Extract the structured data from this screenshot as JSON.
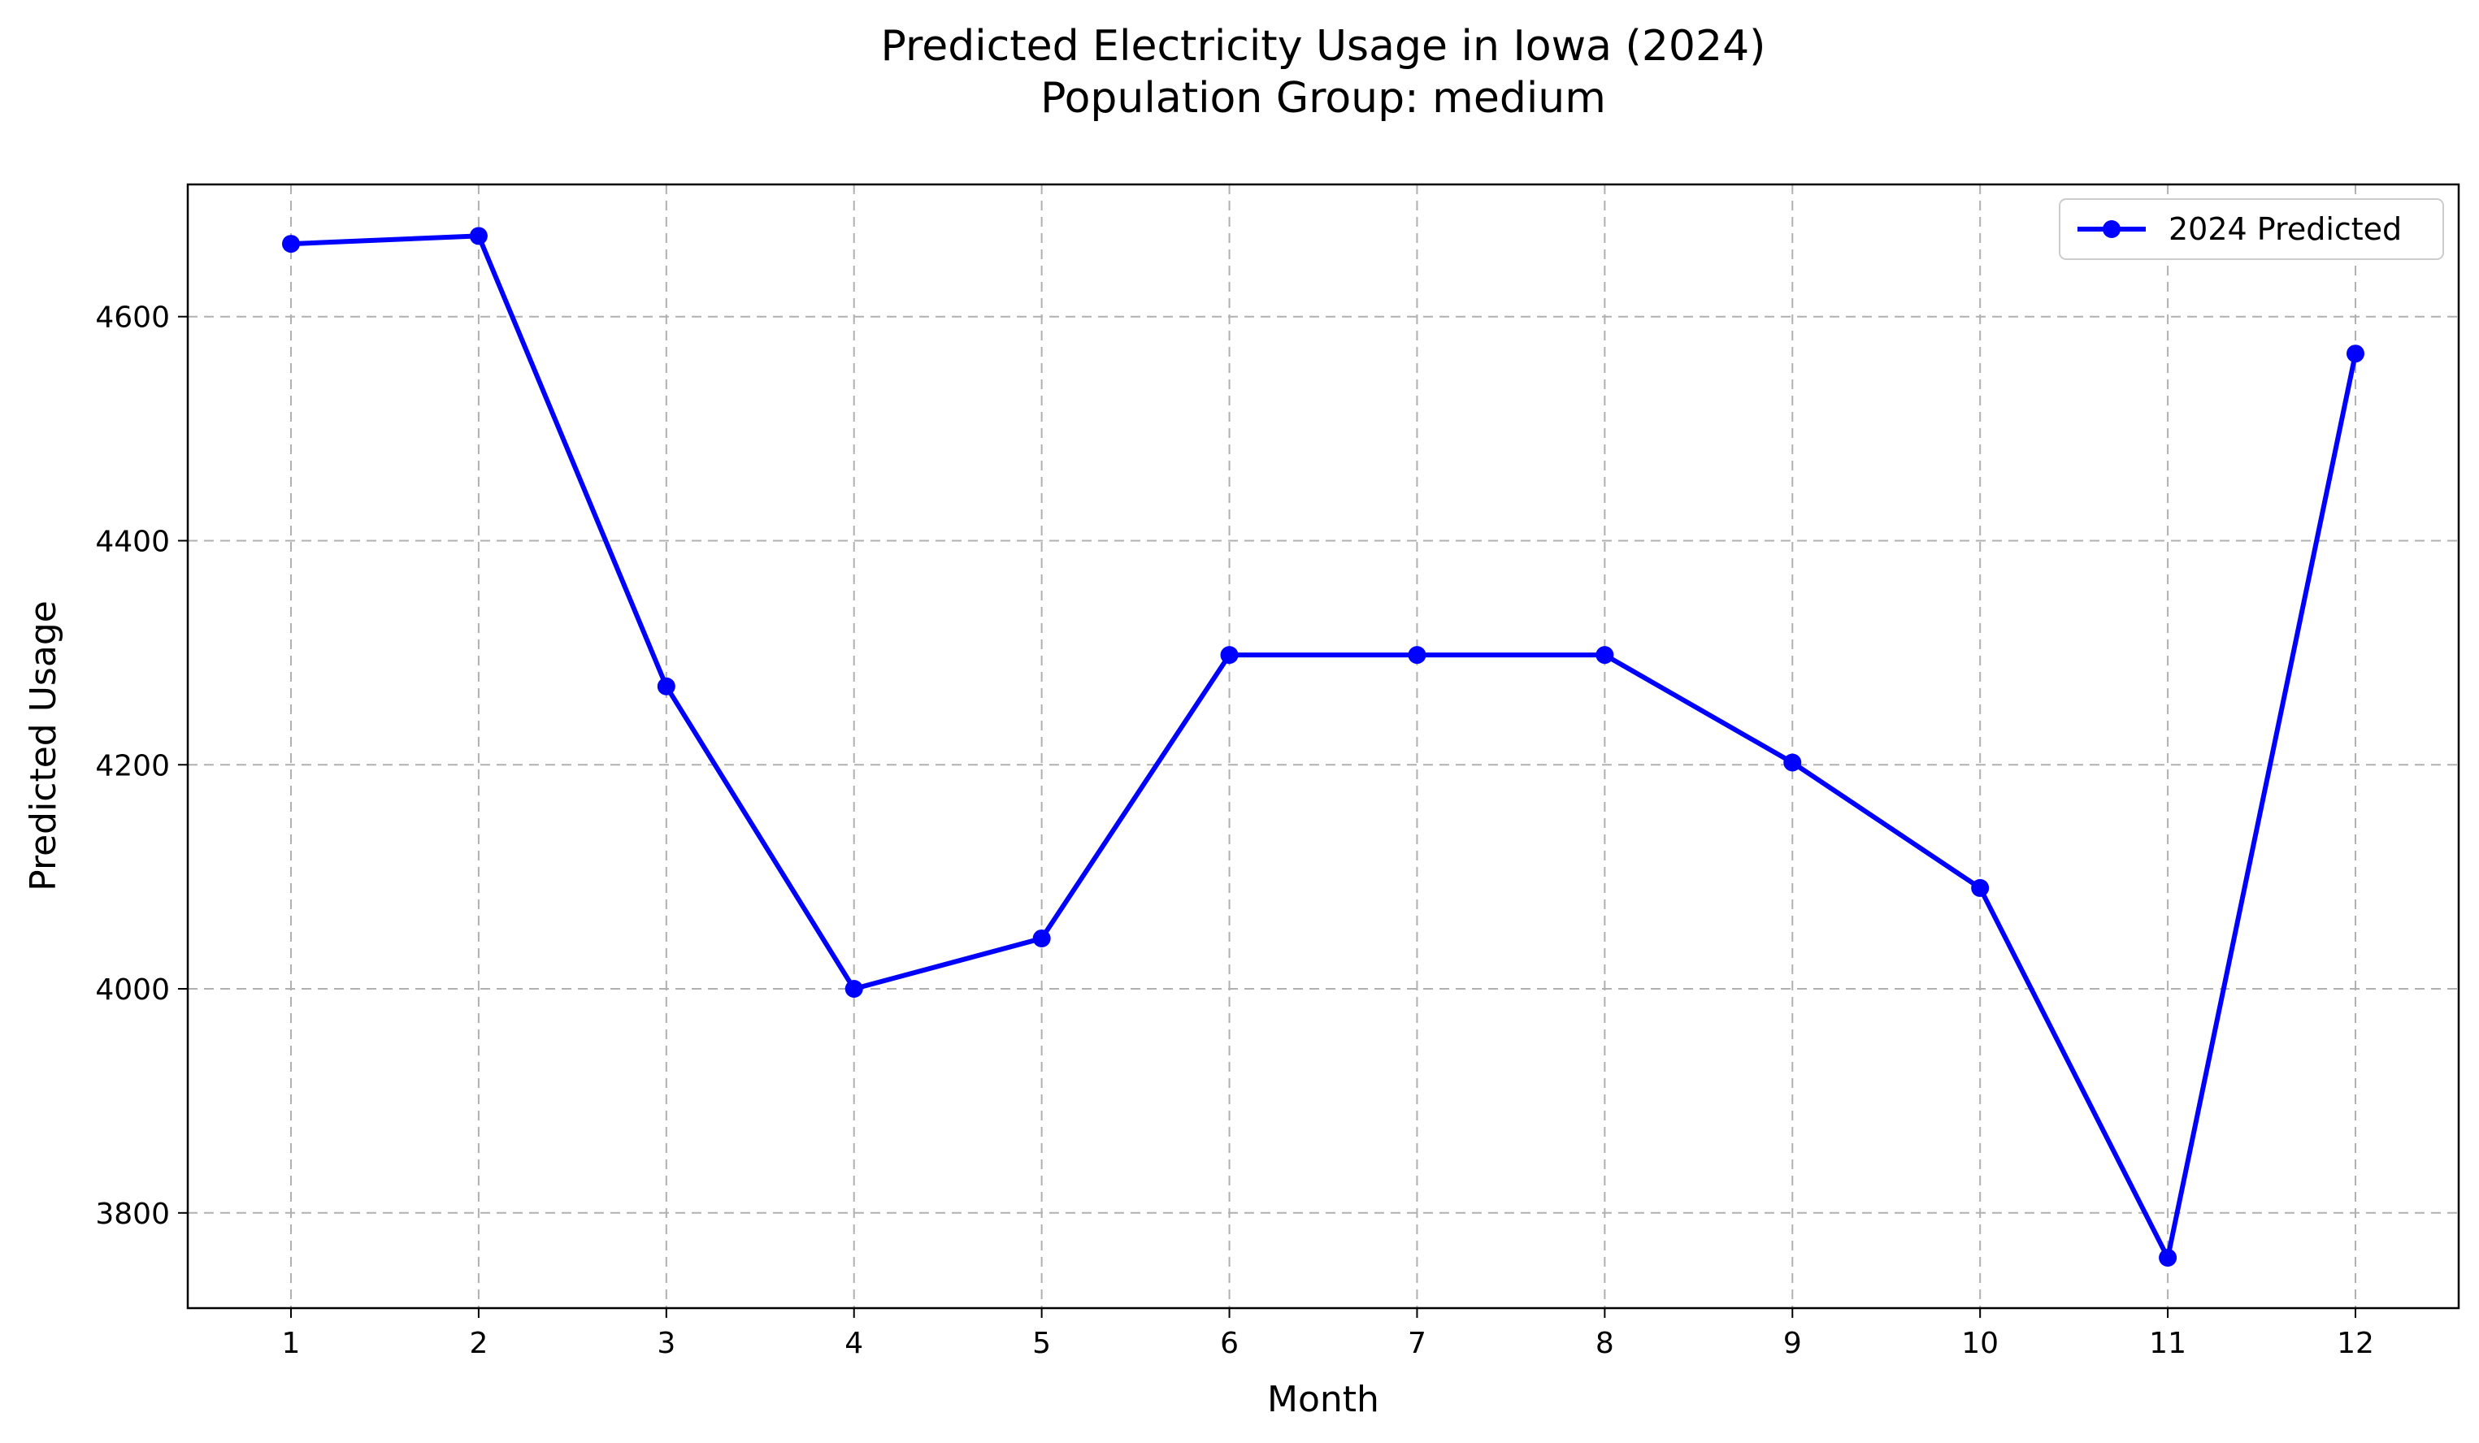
{
  "chart_data": {
    "type": "line",
    "title_line1": "Predicted Electricity Usage in Iowa (2024)",
    "title_line2": "Population Group: medium",
    "xlabel": "Month",
    "ylabel": "Predicted Usage",
    "x": [
      1,
      2,
      3,
      4,
      5,
      6,
      7,
      8,
      9,
      10,
      11,
      12
    ],
    "xticks": [
      "1",
      "2",
      "3",
      "4",
      "5",
      "6",
      "7",
      "8",
      "9",
      "10",
      "11",
      "12"
    ],
    "yticks": [
      3800,
      4000,
      4200,
      4400,
      4600
    ],
    "xlim": [
      0.45,
      12.55
    ],
    "ylim": [
      3715,
      4718
    ],
    "grid": true,
    "legend_position": "top-right",
    "series": [
      {
        "name": "2024 Predicted",
        "color": "#0000ff",
        "marker": "circle",
        "values": [
          4665,
          4672,
          4270,
          4000,
          4045,
          4298,
          4298,
          4298,
          4202,
          4090,
          3760,
          4567
        ]
      }
    ]
  }
}
